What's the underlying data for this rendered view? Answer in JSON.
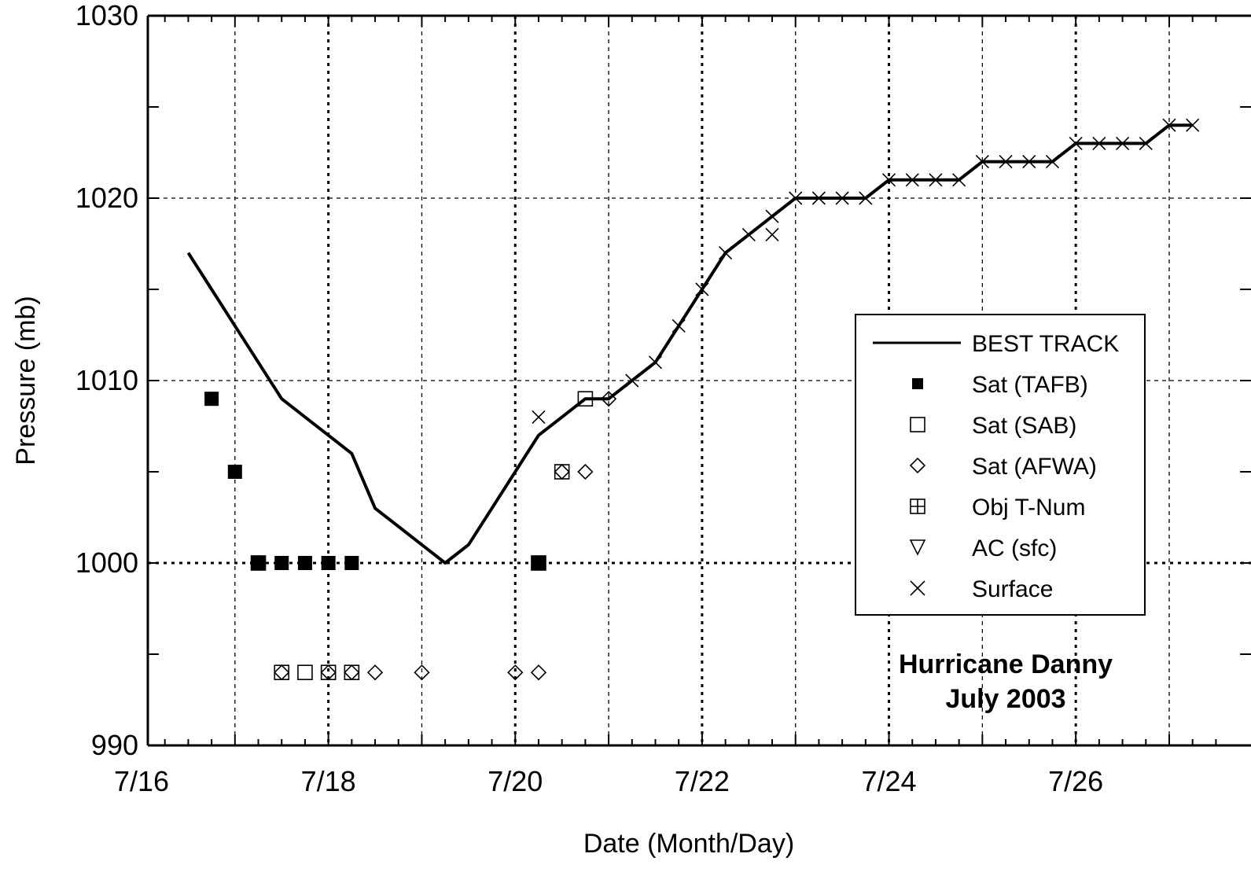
{
  "chart_data": {
    "type": "scatter",
    "xlabel": "Date (Month/Day)",
    "ylabel": "Pressure (mb)",
    "xlim": [
      "7/16 00Z",
      "7/27 12Z"
    ],
    "ylim": [
      990,
      1030
    ],
    "x_ticks": [
      "7/16",
      "7/18",
      "7/20",
      "7/22",
      "7/24",
      "7/26"
    ],
    "y_ticks": [
      "990",
      "1000",
      "1010",
      "1020",
      "1030"
    ],
    "grid": true,
    "legend_position": "right",
    "annotation": [
      "Hurricane Danny",
      "July 2003"
    ],
    "series": [
      {
        "name": "BEST TRACK",
        "marker": "line",
        "points": [
          [
            "7/16 12Z",
            1017
          ],
          [
            "7/16 18Z",
            1015
          ],
          [
            "7/17 00Z",
            1013
          ],
          [
            "7/17 06Z",
            1011
          ],
          [
            "7/17 12Z",
            1009
          ],
          [
            "7/17 18Z",
            1008
          ],
          [
            "7/18 00Z",
            1007
          ],
          [
            "7/18 06Z",
            1006
          ],
          [
            "7/18 12Z",
            1003
          ],
          [
            "7/18 18Z",
            1002
          ],
          [
            "7/19 00Z",
            1001
          ],
          [
            "7/19 06Z",
            1000
          ],
          [
            "7/19 12Z",
            1001
          ],
          [
            "7/19 18Z",
            1003
          ],
          [
            "7/20 00Z",
            1005
          ],
          [
            "7/20 06Z",
            1007
          ],
          [
            "7/20 12Z",
            1008
          ],
          [
            "7/20 18Z",
            1009
          ],
          [
            "7/21 00Z",
            1009
          ],
          [
            "7/21 06Z",
            1010
          ],
          [
            "7/21 12Z",
            1011
          ],
          [
            "7/21 18Z",
            1013
          ],
          [
            "7/22 00Z",
            1015
          ],
          [
            "7/22 06Z",
            1017
          ],
          [
            "7/22 12Z",
            1018
          ],
          [
            "7/22 18Z",
            1019
          ],
          [
            "7/23 00Z",
            1020
          ],
          [
            "7/23 06Z",
            1020
          ],
          [
            "7/23 12Z",
            1020
          ],
          [
            "7/23 18Z",
            1020
          ],
          [
            "7/24 00Z",
            1021
          ],
          [
            "7/24 06Z",
            1021
          ],
          [
            "7/24 12Z",
            1021
          ],
          [
            "7/24 18Z",
            1021
          ],
          [
            "7/25 00Z",
            1022
          ],
          [
            "7/25 06Z",
            1022
          ],
          [
            "7/25 12Z",
            1022
          ],
          [
            "7/25 18Z",
            1022
          ],
          [
            "7/26 00Z",
            1023
          ],
          [
            "7/26 06Z",
            1023
          ],
          [
            "7/26 12Z",
            1023
          ],
          [
            "7/26 18Z",
            1023
          ],
          [
            "7/27 00Z",
            1024
          ],
          [
            "7/27 06Z",
            1024
          ]
        ]
      },
      {
        "name": "Sat (TAFB)",
        "marker": "filled-square",
        "points": [
          [
            "7/16 18Z",
            1009
          ],
          [
            "7/17 00Z",
            1005
          ],
          [
            "7/17 06Z",
            1000
          ],
          [
            "7/17 12Z",
            1000
          ],
          [
            "7/17 18Z",
            1000
          ],
          [
            "7/18 00Z",
            1000
          ],
          [
            "7/18 06Z",
            1000
          ],
          [
            "7/20 06Z",
            1000
          ]
        ]
      },
      {
        "name": "Sat (SAB)",
        "marker": "open-square",
        "points": [
          [
            "7/17 06Z",
            1000
          ],
          [
            "7/17 12Z",
            994
          ],
          [
            "7/17 18Z",
            994
          ],
          [
            "7/18 00Z",
            994
          ],
          [
            "7/18 06Z",
            994
          ],
          [
            "7/20 06Z",
            1000
          ],
          [
            "7/20 12Z",
            1005
          ],
          [
            "7/20 18Z",
            1009
          ]
        ]
      },
      {
        "name": "Sat (AFWA)",
        "marker": "diamond",
        "points": [
          [
            "7/17 06Z",
            1000
          ],
          [
            "7/17 12Z",
            994
          ],
          [
            "7/18 00Z",
            994
          ],
          [
            "7/18 06Z",
            994
          ],
          [
            "7/18 12Z",
            994
          ],
          [
            "7/19 00Z",
            994
          ],
          [
            "7/20 00Z",
            994
          ],
          [
            "7/20 06Z",
            994
          ],
          [
            "7/20 12Z",
            1005
          ],
          [
            "7/20 18Z",
            1005
          ],
          [
            "7/21 00Z",
            1009
          ]
        ]
      },
      {
        "name": "Obj T-Num",
        "marker": "square-plus",
        "points": []
      },
      {
        "name": "AC (sfc)",
        "marker": "down-triangle",
        "points": []
      },
      {
        "name": "Surface",
        "marker": "x",
        "points": [
          [
            "7/20 06Z",
            1008
          ],
          [
            "7/21 06Z",
            1010
          ],
          [
            "7/21 12Z",
            1011
          ],
          [
            "7/21 18Z",
            1013
          ],
          [
            "7/22 00Z",
            1015
          ],
          [
            "7/22 06Z",
            1017
          ],
          [
            "7/22 12Z",
            1018
          ],
          [
            "7/22 18Z",
            1018
          ],
          [
            "7/22 18Z",
            1019
          ],
          [
            "7/23 00Z",
            1020
          ],
          [
            "7/23 06Z",
            1020
          ],
          [
            "7/23 12Z",
            1020
          ],
          [
            "7/23 18Z",
            1020
          ],
          [
            "7/24 00Z",
            1021
          ],
          [
            "7/24 06Z",
            1021
          ],
          [
            "7/24 12Z",
            1021
          ],
          [
            "7/24 18Z",
            1021
          ],
          [
            "7/25 00Z",
            1022
          ],
          [
            "7/25 06Z",
            1022
          ],
          [
            "7/25 12Z",
            1022
          ],
          [
            "7/25 18Z",
            1022
          ],
          [
            "7/26 00Z",
            1023
          ],
          [
            "7/26 06Z",
            1023
          ],
          [
            "7/26 12Z",
            1023
          ],
          [
            "7/26 18Z",
            1023
          ],
          [
            "7/27 00Z",
            1024
          ],
          [
            "7/27 06Z",
            1024
          ]
        ]
      }
    ]
  }
}
